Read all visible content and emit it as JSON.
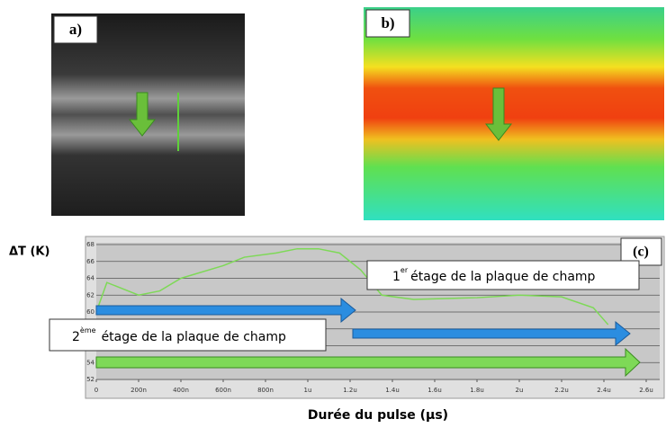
{
  "panels": {
    "a": "a)",
    "b": "b)"
  },
  "chart_data": {
    "type": "line",
    "panel_label": "(c)",
    "ylabel": "ΔT (K)",
    "xlabel": "Durée du pulse (µs)",
    "annotations": [
      {
        "base": "1",
        "sup": "er",
        "text": "étage de la plaque de champ"
      },
      {
        "base": "2",
        "sup": "ème",
        "text": "étage de la plaque de champ"
      }
    ],
    "x": [
      0,
      0.05,
      0.2,
      0.3,
      0.4,
      0.6,
      0.7,
      0.85,
      0.95,
      1.05,
      1.15,
      1.25,
      1.35,
      1.5,
      1.8,
      2.0,
      2.2,
      2.35,
      2.42
    ],
    "series": [
      {
        "color": "#7ed957",
        "values": [
          60,
          63.5,
          62,
          62.5,
          64,
          65.5,
          66.5,
          67,
          67.5,
          67.5,
          67,
          65,
          62,
          61.5,
          61.7,
          62,
          61.8,
          60.5,
          58.5
        ]
      }
    ],
    "xlim": [
      0,
      2.6
    ],
    "xticks": [
      0,
      {
        "value": 0.2,
        "label": "200n"
      },
      {
        "value": 0.4,
        "label": "400n"
      },
      {
        "value": 0.6,
        "label": "600n"
      },
      {
        "value": 0.8,
        "label": "800n"
      },
      {
        "value": 1,
        "label": "1u"
      },
      {
        "value": 1.2,
        "label": "1.2u"
      },
      {
        "value": 1.4,
        "label": "1.4u"
      },
      {
        "value": 1.6,
        "label": "1.6u"
      },
      {
        "value": 1.8,
        "label": "1.8u"
      },
      {
        "value": 2,
        "label": "2u"
      },
      {
        "value": 2.2,
        "label": "2.2u"
      },
      {
        "value": 2.4,
        "label": "2.4u"
      },
      {
        "value": 2.6,
        "label": "2.6u"
      }
    ],
    "ylim": [
      52,
      68
    ],
    "yticks": [
      52,
      54,
      56,
      58,
      60,
      62,
      64,
      66,
      68
    ],
    "grid": true
  }
}
